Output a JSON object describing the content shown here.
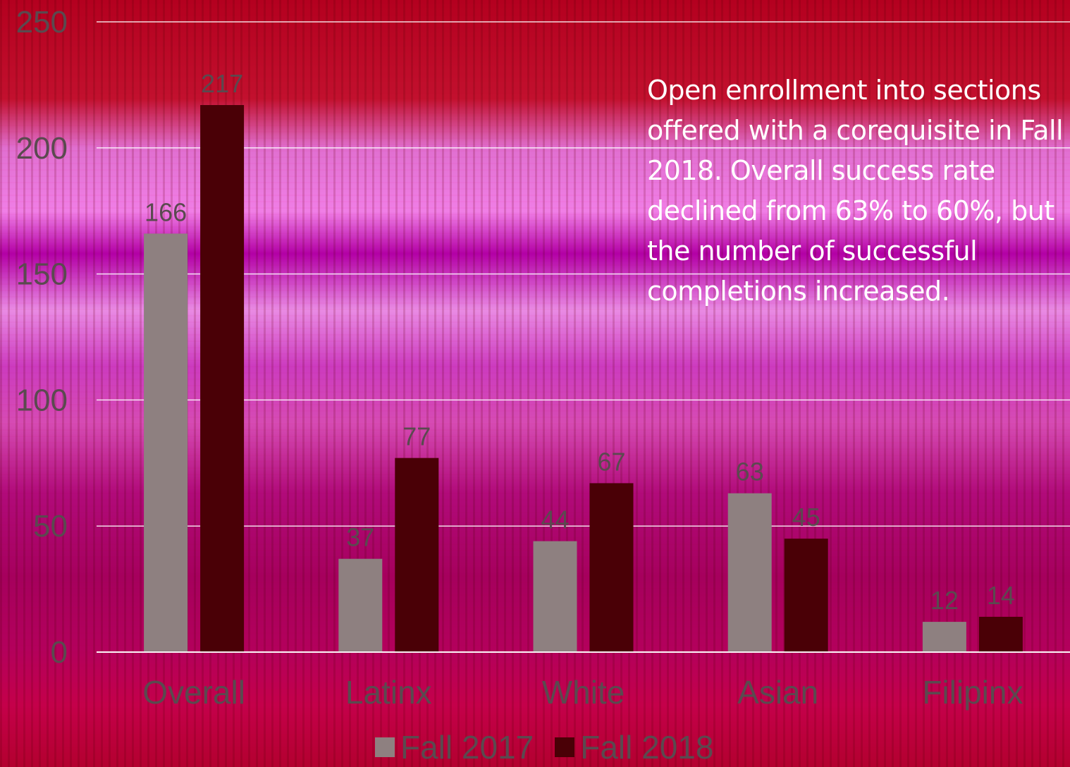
{
  "chart_data": {
    "type": "bar",
    "categories": [
      "Overall",
      "Latinx",
      "White",
      "Asian",
      "Filipinx"
    ],
    "series": [
      {
        "name": "Fall 2017",
        "values": [
          166,
          37,
          44,
          63,
          12
        ],
        "color": "#8e8080"
      },
      {
        "name": "Fall 2018",
        "values": [
          217,
          77,
          67,
          45,
          14
        ],
        "color": "#4a0006"
      }
    ],
    "y_ticks": [
      0,
      50,
      100,
      150,
      200,
      250
    ],
    "ylim": [
      0,
      250
    ],
    "grid": true,
    "legend_position": "bottom",
    "annotation": "Open enrollment into sections offered with a corequisite in Fall 2018.  Overall success rate declined from 63% to 60%, but the number of successful completions increased."
  },
  "colors": {
    "axis_text": "#5a4a4f",
    "data_label": "#5a4a4f",
    "gridline": "#ffffff"
  }
}
